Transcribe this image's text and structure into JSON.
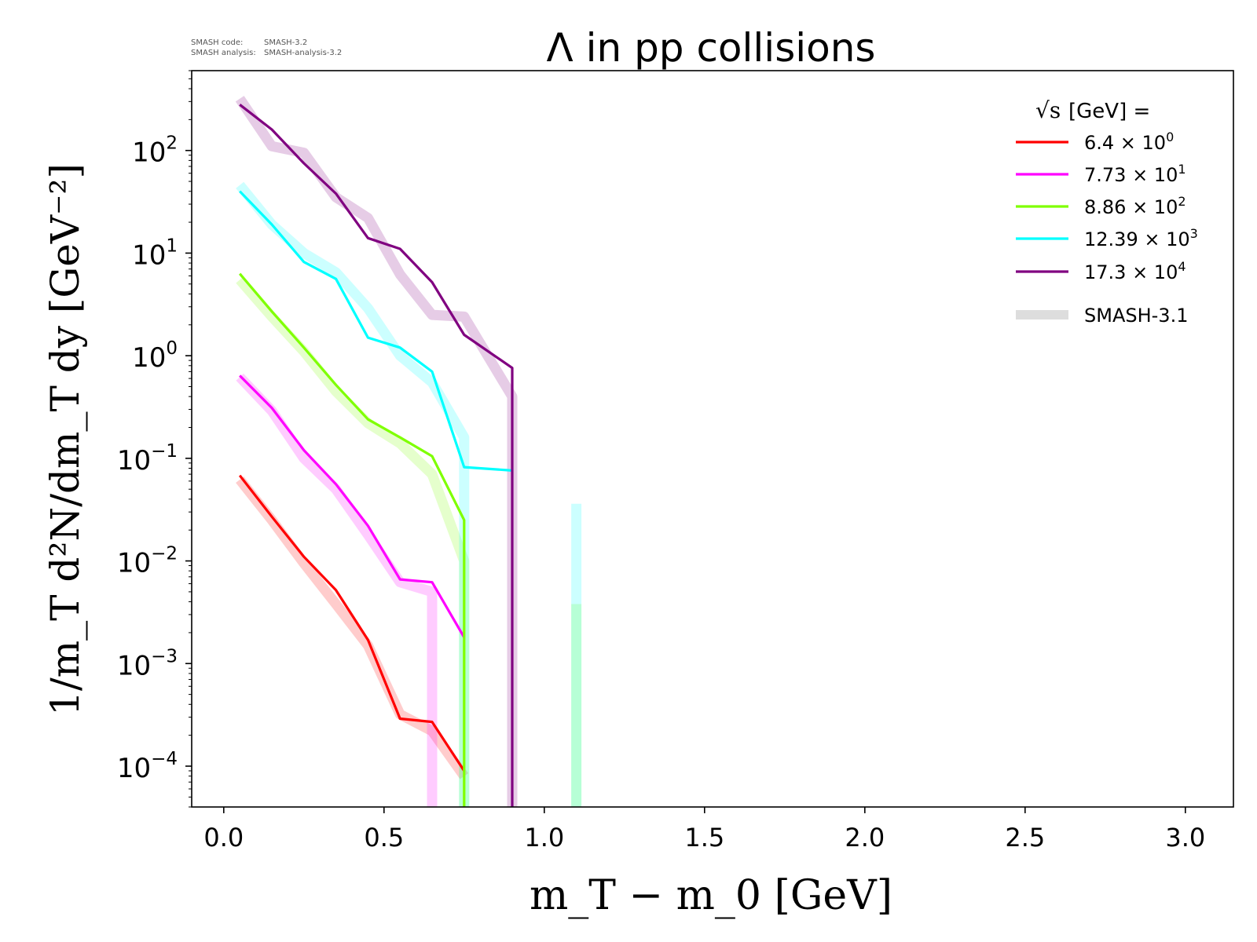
{
  "chart_data": {
    "type": "line",
    "title": "Λ in pp collisions",
    "version_note": {
      "code_label": "SMASH code:",
      "code_value": "SMASH-3.2",
      "analysis_label": "SMASH analysis:",
      "analysis_value": "SMASH-analysis-3.2"
    },
    "xlabel": "m_T − m_0 [GeV]",
    "ylabel": "1/m_T d²N/dm_T dy [GeV⁻²]",
    "x_scale": "linear",
    "y_scale": "log",
    "xlim": [
      -0.1,
      3.15
    ],
    "ylim": [
      4e-05,
      600
    ],
    "x_ticks": [
      0.0,
      0.5,
      1.0,
      1.5,
      2.0,
      2.5,
      3.0
    ],
    "x_tick_labels": [
      "0.0",
      "0.5",
      "1.0",
      "1.5",
      "2.0",
      "2.5",
      "3.0"
    ],
    "y_ticks": [
      {
        "value": 0.0001,
        "base": "10",
        "exp": "−4"
      },
      {
        "value": 0.001,
        "base": "10",
        "exp": "−3"
      },
      {
        "value": 0.01,
        "base": "10",
        "exp": "−2"
      },
      {
        "value": 0.1,
        "base": "10",
        "exp": "−1"
      },
      {
        "value": 1,
        "base": "10",
        "exp": "0"
      },
      {
        "value": 10,
        "base": "10",
        "exp": "1"
      },
      {
        "value": 100,
        "base": "10",
        "exp": "2"
      }
    ],
    "grid": false,
    "legend": {
      "position": "top-right",
      "title_root": "√s",
      "title_rest": " [GeV] =",
      "entries": [
        {
          "mantissa": "6.4",
          "exp": "0",
          "color": "#ff0000"
        },
        {
          "mantissa": "7.73",
          "exp": "1",
          "color": "#ff00ff"
        },
        {
          "mantissa": "8.86",
          "exp": "2",
          "color": "#7fff00"
        },
        {
          "mantissa": "12.39",
          "exp": "3",
          "color": "#00ffff"
        },
        {
          "mantissa": "17.3",
          "exp": "4",
          "color": "#800080"
        }
      ],
      "reference_label": "SMASH-3.1",
      "reference_color": "#dddddd"
    },
    "series": [
      {
        "color": "#ff0000",
        "x": [
          0.05,
          0.15,
          0.25,
          0.35,
          0.45,
          0.55,
          0.65,
          0.75
        ],
        "y": [
          0.068,
          0.027,
          0.011,
          0.0052,
          0.0017,
          0.00029,
          0.00027,
          9e-05
        ]
      },
      {
        "color": "#ff00ff",
        "x": [
          0.05,
          0.15,
          0.25,
          0.35,
          0.45,
          0.55,
          0.65,
          0.75
        ],
        "y": [
          0.64,
          0.31,
          0.12,
          0.056,
          0.022,
          0.0066,
          0.0062,
          0.0018
        ]
      },
      {
        "color": "#7fff00",
        "x": [
          0.05,
          0.15,
          0.25,
          0.35,
          0.45,
          0.55,
          0.65,
          0.75,
          0.75
        ],
        "y": [
          6.3,
          2.7,
          1.2,
          0.52,
          0.24,
          0.16,
          0.105,
          0.025,
          4e-05
        ]
      },
      {
        "color": "#00ffff",
        "x": [
          0.05,
          0.15,
          0.25,
          0.35,
          0.45,
          0.55,
          0.65,
          0.75,
          0.9
        ],
        "y": [
          40,
          19,
          8.2,
          5.6,
          1.5,
          1.2,
          0.7,
          0.082,
          0.076
        ]
      },
      {
        "color": "#800080",
        "x": [
          0.05,
          0.15,
          0.25,
          0.35,
          0.45,
          0.55,
          0.65,
          0.75,
          0.9,
          0.9
        ],
        "y": [
          280,
          160,
          75,
          38,
          14,
          11,
          5.2,
          1.6,
          0.76,
          4e-05
        ]
      }
    ],
    "reference_series": [
      {
        "color": "#ff0000",
        "x": [
          0.05,
          0.15,
          0.25,
          0.35,
          0.45,
          0.55,
          0.65,
          0.75
        ],
        "y": [
          0.062,
          0.025,
          0.0095,
          0.0038,
          0.0015,
          0.00032,
          0.00022,
          8e-05
        ]
      },
      {
        "color": "#ff00ff",
        "x": [
          0.05,
          0.15,
          0.25,
          0.35,
          0.45,
          0.55,
          0.65,
          0.65
        ],
        "y": [
          0.62,
          0.29,
          0.1,
          0.05,
          0.018,
          0.0062,
          0.005,
          4e-05
        ]
      },
      {
        "color": "#7fff00",
        "x": [
          0.05,
          0.15,
          0.25,
          0.35,
          0.45,
          0.55,
          0.65,
          0.75,
          0.75
        ],
        "y": [
          5.5,
          2.4,
          1.1,
          0.45,
          0.22,
          0.14,
          0.07,
          0.01,
          4e-05
        ]
      },
      {
        "color": "#7fff00",
        "x": [
          1.1,
          1.1
        ],
        "y": [
          0.0038,
          4e-05
        ]
      },
      {
        "color": "#00ffff",
        "x": [
          0.05,
          0.15,
          0.25,
          0.35,
          0.45,
          0.55,
          0.65,
          0.75,
          0.75
        ],
        "y": [
          46,
          19,
          10,
          6.5,
          2.9,
          1.0,
          0.55,
          0.16,
          4e-05
        ]
      },
      {
        "color": "#00ffff",
        "x": [
          1.1,
          1.1
        ],
        "y": [
          0.036,
          4e-05
        ]
      },
      {
        "color": "#800080",
        "x": [
          0.05,
          0.15,
          0.25,
          0.35,
          0.45,
          0.55,
          0.65,
          0.75,
          0.9,
          0.9
        ],
        "y": [
          320,
          110,
          95,
          35,
          22,
          6.2,
          2.5,
          2.4,
          0.4,
          4e-05
        ]
      }
    ]
  }
}
